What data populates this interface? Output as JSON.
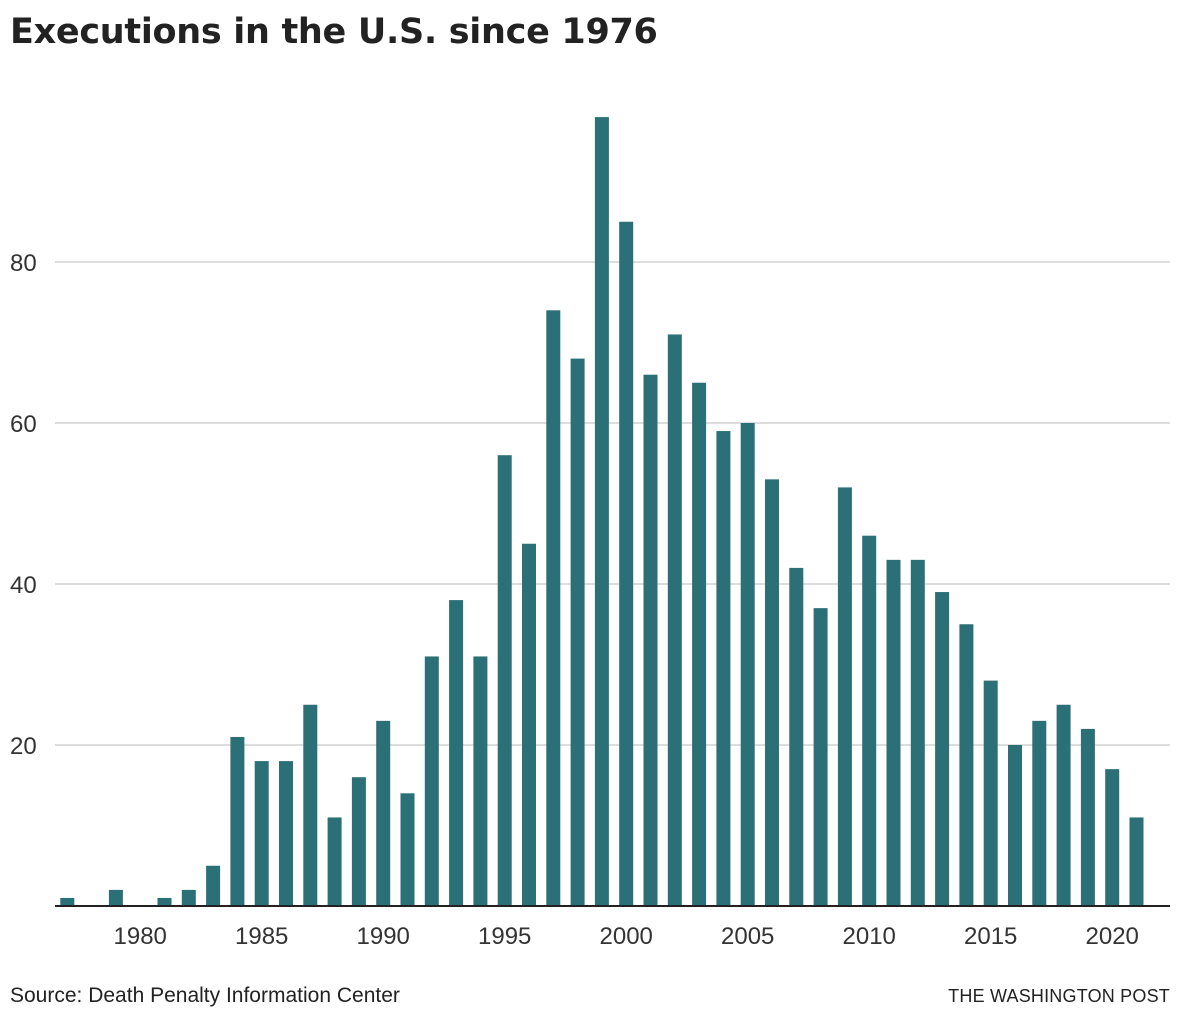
{
  "header": {
    "title": "Executions in the U.S. since 1976"
  },
  "footer": {
    "source": "Source: Death Penalty Information Center",
    "credit": "THE WASHINGTON POST"
  },
  "colors": {
    "bar": "#2b6f77",
    "grid": "#bbbbbb",
    "axis": "#222222",
    "text": "#333333"
  },
  "chart_data": {
    "type": "bar",
    "title": "Executions in the U.S. since 1976",
    "xlabel": "",
    "ylabel": "",
    "x": [
      1976,
      1977,
      1978,
      1979,
      1980,
      1981,
      1982,
      1983,
      1984,
      1985,
      1986,
      1987,
      1988,
      1989,
      1990,
      1991,
      1992,
      1993,
      1994,
      1995,
      1996,
      1997,
      1998,
      1999,
      2000,
      2001,
      2002,
      2003,
      2004,
      2005,
      2006,
      2007,
      2008,
      2009,
      2010,
      2011,
      2012,
      2013,
      2014,
      2015,
      2016,
      2017,
      2018,
      2019,
      2020,
      2021
    ],
    "values": [
      0,
      1,
      0,
      2,
      0,
      1,
      2,
      5,
      21,
      18,
      18,
      25,
      11,
      16,
      23,
      14,
      31,
      38,
      31,
      56,
      45,
      74,
      68,
      98,
      85,
      66,
      71,
      65,
      59,
      60,
      53,
      42,
      37,
      52,
      46,
      43,
      43,
      39,
      35,
      28,
      20,
      23,
      25,
      22,
      17,
      11
    ],
    "xticks": [
      "1980",
      "1985",
      "1990",
      "1995",
      "2000",
      "2005",
      "2010",
      "2015",
      "2020"
    ],
    "yticks": [
      "20",
      "40",
      "60",
      "80"
    ],
    "ylim": [
      0,
      100
    ],
    "grid": true
  }
}
